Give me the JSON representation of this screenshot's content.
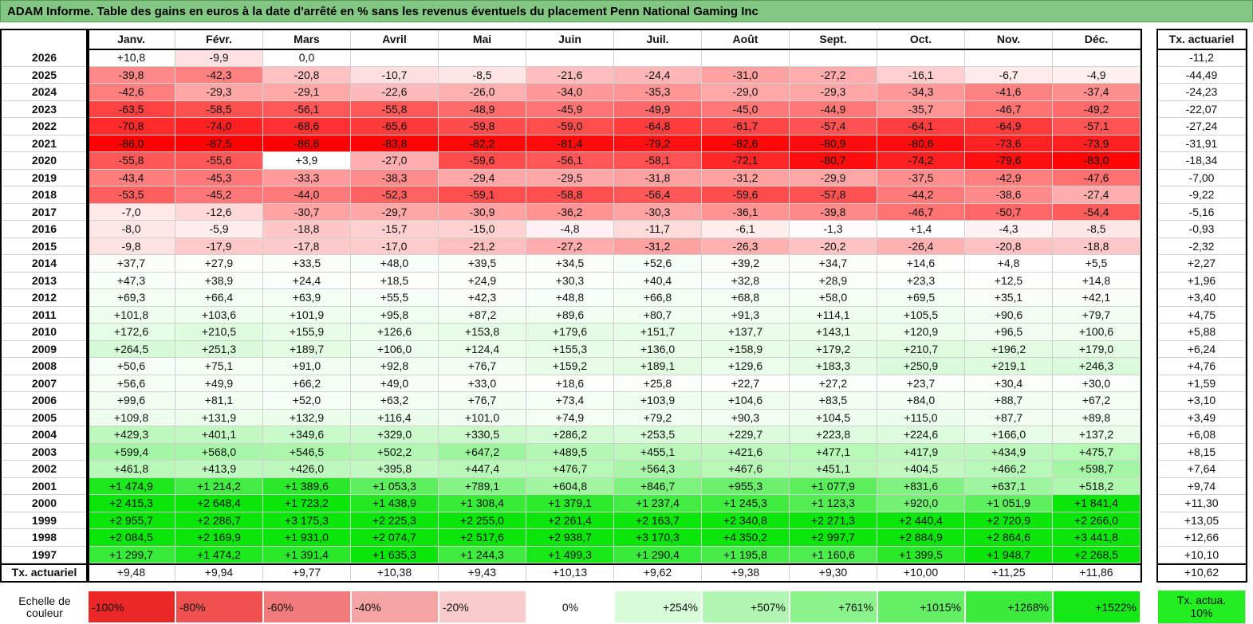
{
  "header": {
    "title": "ADAM Informe. Table des gains en euros à la date d'arrêté en % sans les revenus éventuels du placement Penn National Gaming Inc"
  },
  "table": {
    "columns": [
      "Janv.",
      "Févr.",
      "Mars",
      "Avril",
      "Mai",
      "Juin",
      "Juil.",
      "Août",
      "Sept.",
      "Oct.",
      "Nov.",
      "Déc.",
      "Tx. actuariel"
    ],
    "rows": [
      [
        "2026",
        "+10,8",
        "-9,9",
        "0,0",
        null,
        null,
        null,
        null,
        null,
        null,
        null,
        null,
        null,
        "-11,2"
      ],
      [
        "2025",
        "-39,8",
        "-42,3",
        "-20,8",
        "-10,7",
        "-8,5",
        "-21,6",
        "-24,4",
        "-31,0",
        "-27,2",
        "-16,1",
        "-6,7",
        "-4,9",
        "-44,49"
      ],
      [
        "2024",
        "-42,6",
        "-29,3",
        "-29,1",
        "-22,6",
        "-26,0",
        "-34,0",
        "-35,3",
        "-29,0",
        "-29,3",
        "-34,3",
        "-41,6",
        "-37,4",
        "-24,23"
      ],
      [
        "2023",
        "-63,5",
        "-58,5",
        "-56,1",
        "-55,8",
        "-48,9",
        "-45,9",
        "-49,9",
        "-45,0",
        "-44,9",
        "-35,7",
        "-46,7",
        "-49,2",
        "-22,07"
      ],
      [
        "2022",
        "-70,8",
        "-74,0",
        "-68,6",
        "-65,6",
        "-59,8",
        "-59,0",
        "-64,8",
        "-61,7",
        "-57,4",
        "-64,1",
        "-64,9",
        "-57,1",
        "-27,24"
      ],
      [
        "2021",
        "-86,0",
        "-87,5",
        "-86,6",
        "-83,8",
        "-82,2",
        "-81,4",
        "-79,2",
        "-82,6",
        "-80,9",
        "-80,6",
        "-73,6",
        "-73,9",
        "-31,91"
      ],
      [
        "2020",
        "-55,8",
        "-55,6",
        "+3,9",
        "-27,0",
        "-59,6",
        "-56,1",
        "-58,1",
        "-72,1",
        "-80,7",
        "-74,2",
        "-79,6",
        "-83,0",
        "-18,34"
      ],
      [
        "2019",
        "-43,4",
        "-45,3",
        "-33,3",
        "-38,3",
        "-29,4",
        "-29,5",
        "-31,8",
        "-31,2",
        "-29,9",
        "-37,5",
        "-42,9",
        "-47,6",
        "-7,00"
      ],
      [
        "2018",
        "-53,5",
        "-45,2",
        "-44,0",
        "-52,3",
        "-59,1",
        "-58,8",
        "-56,4",
        "-59,6",
        "-57,8",
        "-44,2",
        "-38,6",
        "-27,4",
        "-9,22"
      ],
      [
        "2017",
        "-7,0",
        "-12,6",
        "-30,7",
        "-29,7",
        "-30,9",
        "-36,2",
        "-30,3",
        "-36,1",
        "-39,8",
        "-46,7",
        "-50,7",
        "-54,4",
        "-5,16"
      ],
      [
        "2016",
        "-8,0",
        "-5,9",
        "-18,8",
        "-15,7",
        "-15,0",
        "-4,8",
        "-11,7",
        "-6,1",
        "-1,3",
        "+1,4",
        "-4,3",
        "-8,5",
        "-0,93"
      ],
      [
        "2015",
        "-9,8",
        "-17,9",
        "-17,8",
        "-17,0",
        "-21,2",
        "-27,2",
        "-31,2",
        "-26,3",
        "-20,2",
        "-26,4",
        "-20,8",
        "-18,8",
        "-2,32"
      ],
      [
        "2014",
        "+37,7",
        "+27,9",
        "+33,5",
        "+48,0",
        "+39,5",
        "+34,5",
        "+52,6",
        "+39,2",
        "+34,7",
        "+14,6",
        "+4,8",
        "+5,5",
        "+2,27"
      ],
      [
        "2013",
        "+47,3",
        "+38,9",
        "+24,4",
        "+18,5",
        "+24,9",
        "+30,3",
        "+40,4",
        "+32,8",
        "+28,9",
        "+23,3",
        "+12,5",
        "+14,8",
        "+1,96"
      ],
      [
        "2012",
        "+69,3",
        "+66,4",
        "+63,9",
        "+55,5",
        "+42,3",
        "+48,8",
        "+66,8",
        "+68,8",
        "+58,0",
        "+69,5",
        "+35,1",
        "+42,1",
        "+3,40"
      ],
      [
        "2011",
        "+101,8",
        "+103,6",
        "+101,9",
        "+95,8",
        "+87,2",
        "+89,6",
        "+80,7",
        "+91,3",
        "+114,1",
        "+105,5",
        "+90,6",
        "+79,7",
        "+4,75"
      ],
      [
        "2010",
        "+172,6",
        "+210,5",
        "+155,9",
        "+126,6",
        "+153,8",
        "+179,6",
        "+151,7",
        "+137,7",
        "+143,1",
        "+120,9",
        "+96,5",
        "+100,6",
        "+5,88"
      ],
      [
        "2009",
        "+264,5",
        "+251,3",
        "+189,7",
        "+106,0",
        "+124,4",
        "+155,3",
        "+136,0",
        "+158,9",
        "+179,2",
        "+210,7",
        "+196,2",
        "+179,0",
        "+6,24"
      ],
      [
        "2008",
        "+50,6",
        "+75,1",
        "+91,0",
        "+92,8",
        "+76,7",
        "+159,2",
        "+189,1",
        "+129,6",
        "+183,3",
        "+250,9",
        "+219,1",
        "+246,3",
        "+4,76"
      ],
      [
        "2007",
        "+56,6",
        "+49,9",
        "+66,2",
        "+49,0",
        "+33,0",
        "+18,6",
        "+25,8",
        "+22,7",
        "+27,2",
        "+23,7",
        "+30,4",
        "+30,0",
        "+1,59"
      ],
      [
        "2006",
        "+99,6",
        "+81,1",
        "+52,0",
        "+63,2",
        "+76,7",
        "+73,4",
        "+103,9",
        "+104,6",
        "+83,5",
        "+84,0",
        "+88,7",
        "+67,2",
        "+3,10"
      ],
      [
        "2005",
        "+109,8",
        "+131,9",
        "+132,9",
        "+116,4",
        "+101,0",
        "+74,9",
        "+79,2",
        "+90,3",
        "+104,5",
        "+115,0",
        "+87,7",
        "+89,8",
        "+3,49"
      ],
      [
        "2004",
        "+429,3",
        "+401,1",
        "+349,6",
        "+329,0",
        "+330,5",
        "+286,2",
        "+253,5",
        "+229,7",
        "+223,8",
        "+224,6",
        "+166,0",
        "+137,2",
        "+6,08"
      ],
      [
        "2003",
        "+599,4",
        "+568,0",
        "+546,5",
        "+502,2",
        "+647,2",
        "+489,5",
        "+455,1",
        "+421,6",
        "+477,1",
        "+417,9",
        "+434,9",
        "+475,7",
        "+8,15"
      ],
      [
        "2002",
        "+461,8",
        "+413,9",
        "+426,0",
        "+395,8",
        "+447,4",
        "+476,7",
        "+564,3",
        "+467,6",
        "+451,1",
        "+404,5",
        "+466,2",
        "+598,7",
        "+7,64"
      ],
      [
        "2001",
        "+1 474,9",
        "+1 214,2",
        "+1 389,6",
        "+1 053,3",
        "+789,1",
        "+604,8",
        "+846,7",
        "+955,3",
        "+1 077,9",
        "+831,6",
        "+637,1",
        "+518,2",
        "+9,74"
      ],
      [
        "2000",
        "+2 415,3",
        "+2 648,4",
        "+1 723,2",
        "+1 438,9",
        "+1 308,4",
        "+1 379,1",
        "+1 237,4",
        "+1 245,3",
        "+1 123,3",
        "+920,0",
        "+1 051,9",
        "+1 841,4",
        "+11,30"
      ],
      [
        "1999",
        "+2 955,7",
        "+2 286,7",
        "+3 175,3",
        "+2 225,3",
        "+2 255,0",
        "+2 261,4",
        "+2 163,7",
        "+2 340,8",
        "+2 271,3",
        "+2 440,4",
        "+2 720,9",
        "+2 266,0",
        "+13,05"
      ],
      [
        "1998",
        "+2 084,5",
        "+2 169,9",
        "+1 931,0",
        "+2 074,7",
        "+2 517,6",
        "+2 938,7",
        "+3 170,3",
        "+4 350,2",
        "+2 997,7",
        "+2 884,9",
        "+2 864,6",
        "+3 441,8",
        "+12,66"
      ],
      [
        "1997",
        "+1 299,7",
        "+1 474,2",
        "+1 391,4",
        "+1 635,3",
        "+1 244,3",
        "+1 499,3",
        "+1 290,4",
        "+1 195,8",
        "+1 160,6",
        "+1 399,5",
        "+1 948,7",
        "+2 268,5",
        "+10,10"
      ]
    ],
    "footer": [
      "Tx. actuariel",
      "+9,48",
      "+9,94",
      "+9,77",
      "+10,38",
      "+9,43",
      "+10,13",
      "+9,62",
      "+9,38",
      "+9,30",
      "+10,00",
      "+11,25",
      "+11,86",
      "+10,62"
    ]
  },
  "legend": {
    "title": "Echelle de couleur",
    "labels": [
      "-100%",
      "-80%",
      "-60%",
      "-40%",
      "-20%",
      "0%",
      "+254%",
      "+507%",
      "+761%",
      "+1015%",
      "+1268%",
      "+1522%"
    ],
    "reference": "Tx. actua. 10%"
  }
}
